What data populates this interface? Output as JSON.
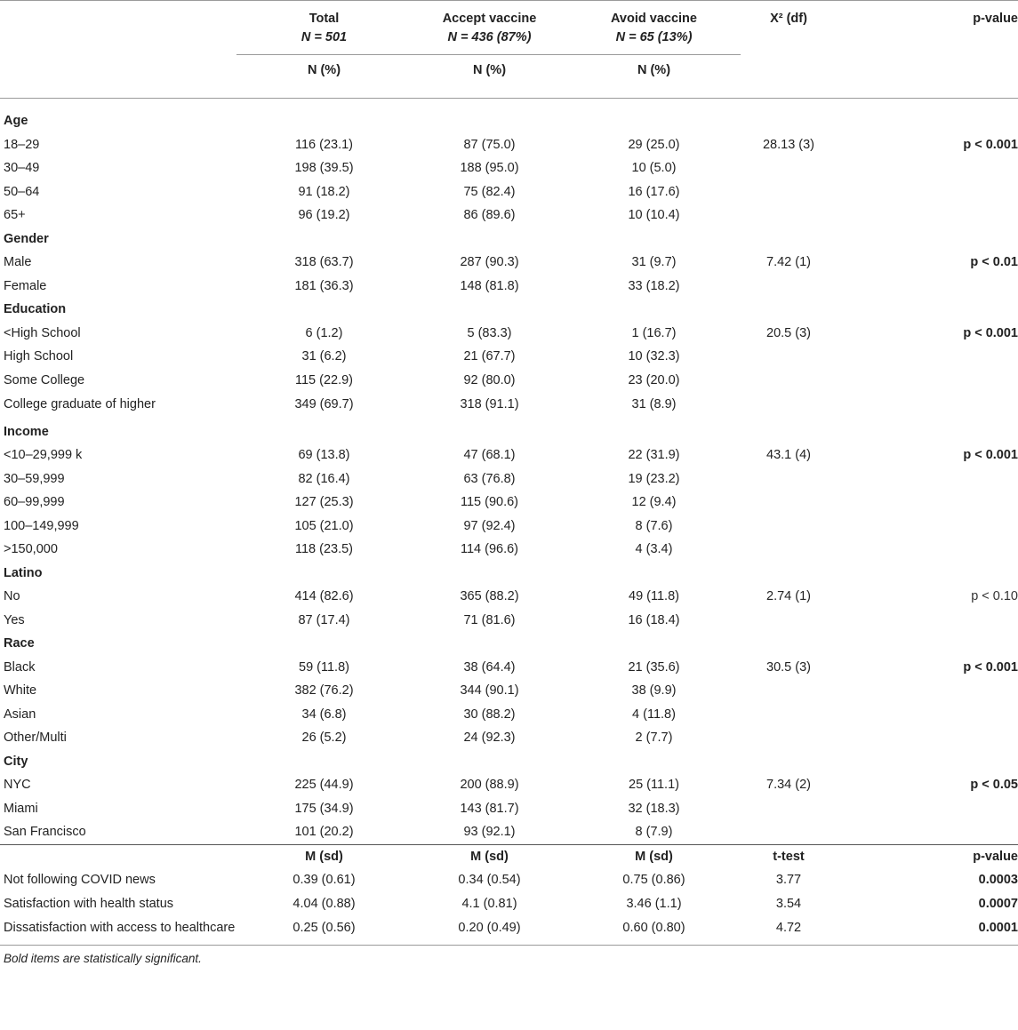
{
  "header": {
    "total": {
      "label": "Total",
      "n": "N = 501",
      "unit": "N (%)"
    },
    "accept": {
      "label": "Accept vaccine",
      "n": "N = 436 (87%)",
      "unit": "N (%)"
    },
    "avoid": {
      "label": "Avoid vaccine",
      "n": "N = 65 (13%)",
      "unit": "N (%)"
    },
    "stat": "X² (df)",
    "p": "p-value"
  },
  "sections": [
    {
      "title": "Age",
      "rows": [
        {
          "label": "18–29",
          "total": "116 (23.1)",
          "accept": "87 (75.0)",
          "avoid": "29 (25.0)",
          "stat": "28.13 (3)",
          "p": "p < 0.001",
          "p_bold": true
        },
        {
          "label": "30–49",
          "total": "198 (39.5)",
          "accept": "188 (95.0)",
          "avoid": "10 (5.0)",
          "stat": "",
          "p": ""
        },
        {
          "label": "50–64",
          "total": "91 (18.2)",
          "accept": "75 (82.4)",
          "avoid": "16 (17.6)",
          "stat": "",
          "p": ""
        },
        {
          "label": "65+",
          "total": "96 (19.2)",
          "accept": "86 (89.6)",
          "avoid": "10 (10.4)",
          "stat": "",
          "p": ""
        }
      ]
    },
    {
      "title": "Gender",
      "rows": [
        {
          "label": "Male",
          "total": "318 (63.7)",
          "accept": "287 (90.3)",
          "avoid": "31 (9.7)",
          "stat": "7.42 (1)",
          "p": "p < 0.01",
          "p_bold": true
        },
        {
          "label": "Female",
          "total": "181 (36.3)",
          "accept": "148 (81.8)",
          "avoid": "33 (18.2)",
          "stat": "",
          "p": ""
        }
      ]
    },
    {
      "title": "Education",
      "rows": [
        {
          "label": "<High School",
          "total": "6 (1.2)",
          "accept": "5 (83.3)",
          "avoid": "1 (16.7)",
          "stat": "20.5 (3)",
          "p": "p < 0.001",
          "p_bold": true
        },
        {
          "label": "High School",
          "total": "31 (6.2)",
          "accept": "21 (67.7)",
          "avoid": "10 (32.3)",
          "stat": "",
          "p": ""
        },
        {
          "label": "Some College",
          "total": "115 (22.9)",
          "accept": "92 (80.0)",
          "avoid": "23 (20.0)",
          "stat": "",
          "p": ""
        },
        {
          "label": "College graduate of higher",
          "total": "349 (69.7)",
          "accept": "318 (91.1)",
          "avoid": "31 (8.9)",
          "stat": "",
          "p": "",
          "tall": true
        }
      ]
    },
    {
      "title": "Income",
      "rows": [
        {
          "label": "<10–29,999 k",
          "total": "69 (13.8)",
          "accept": "47 (68.1)",
          "avoid": "22 (31.9)",
          "stat": "43.1 (4)",
          "p": "p < 0.001",
          "p_bold": true
        },
        {
          "label": "30–59,999",
          "total": "82 (16.4)",
          "accept": "63 (76.8)",
          "avoid": "19 (23.2)",
          "stat": "",
          "p": ""
        },
        {
          "label": "60–99,999",
          "total": "127 (25.3)",
          "accept": "115 (90.6)",
          "avoid": "12 (9.4)",
          "stat": "",
          "p": ""
        },
        {
          "label": "100–149,999",
          "total": "105 (21.0)",
          "accept": "97 (92.4)",
          "avoid": "8 (7.6)",
          "stat": "",
          "p": ""
        },
        {
          "label": ">150,000",
          "total": "118 (23.5)",
          "accept": "114 (96.6)",
          "avoid": "4 (3.4)",
          "stat": "",
          "p": ""
        }
      ]
    },
    {
      "title": "Latino",
      "rows": [
        {
          "label": "No",
          "total": "414 (82.6)",
          "accept": "365 (88.2)",
          "avoid": "49 (11.8)",
          "stat": "2.74 (1)",
          "p": "p < 0.10",
          "p_bold": false
        },
        {
          "label": "Yes",
          "total": "87 (17.4)",
          "accept": "71 (81.6)",
          "avoid": "16 (18.4)",
          "stat": "",
          "p": ""
        }
      ]
    },
    {
      "title": "Race",
      "rows": [
        {
          "label": "Black",
          "total": "59 (11.8)",
          "accept": "38 (64.4)",
          "avoid": "21 (35.6)",
          "stat": "30.5 (3)",
          "p": "p < 0.001",
          "p_bold": true
        },
        {
          "label": "White",
          "total": "382 (76.2)",
          "accept": "344 (90.1)",
          "avoid": "38 (9.9)",
          "stat": "",
          "p": ""
        },
        {
          "label": "Asian",
          "total": "34 (6.8)",
          "accept": "30 (88.2)",
          "avoid": "4 (11.8)",
          "stat": "",
          "p": ""
        },
        {
          "label": "Other/Multi",
          "total": "26 (5.2)",
          "accept": "24 (92.3)",
          "avoid": "2 (7.7)",
          "stat": "",
          "p": ""
        }
      ]
    },
    {
      "title": "City",
      "rows": [
        {
          "label": "NYC",
          "total": "225 (44.9)",
          "accept": "200 (88.9)",
          "avoid": "25 (11.1)",
          "stat": "7.34 (2)",
          "p": "p < 0.05",
          "p_bold": true
        },
        {
          "label": "Miami",
          "total": "175 (34.9)",
          "accept": "143 (81.7)",
          "avoid": "32 (18.3)",
          "stat": "",
          "p": ""
        },
        {
          "label": "San Francisco",
          "total": "101 (20.2)",
          "accept": "93 (92.1)",
          "avoid": "8 (7.9)",
          "stat": "",
          "p": ""
        }
      ]
    }
  ],
  "means_header": {
    "total": "M (sd)",
    "accept": "M (sd)",
    "avoid": "M (sd)",
    "stat": "t-test",
    "p": "p-value"
  },
  "means_rows": [
    {
      "label": "Not following COVID news",
      "total": "0.39 (0.61)",
      "accept": "0.34 (0.54)",
      "avoid": "0.75 (0.86)",
      "stat": "3.77",
      "p": "0.0003"
    },
    {
      "label": "Satisfaction with health status",
      "total": "4.04 (0.88)",
      "accept": "4.1 (0.81)",
      "avoid": "3.46 (1.1)",
      "stat": "3.54",
      "p": "0.0007"
    },
    {
      "label": "Dissatisfaction with access to healthcare",
      "total": "0.25 (0.56)",
      "accept": "0.20 (0.49)",
      "avoid": "0.60 (0.80)",
      "stat": "4.72",
      "p": "0.0001"
    }
  ],
  "footnote": "Bold items are statistically significant."
}
